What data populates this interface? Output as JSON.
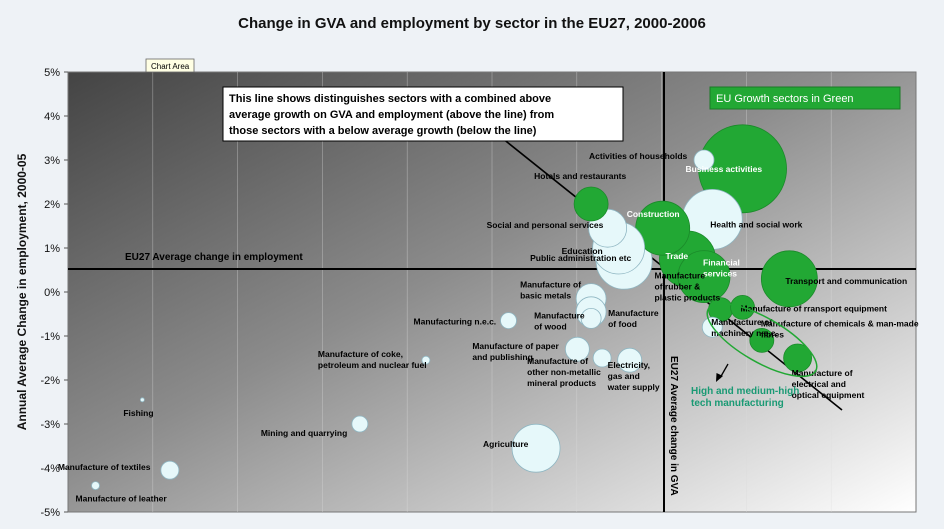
{
  "chart_data": {
    "type": "scatter",
    "title": "Change in GVA and employment by sector in the EU27, 2000-2006",
    "xlabel": "",
    "ylabel": "Annual Average Change in employment, 2000-05",
    "ylim": [
      -5,
      5
    ],
    "yticks": [
      "5%",
      "4%",
      "3%",
      "2%",
      "1%",
      "0%",
      "-1%",
      "-2%",
      "-3%",
      "-4%",
      "-5%"
    ],
    "grid": "vertical",
    "chart_area_tooltip": "Chart Area",
    "legend_box": "EU Growth sectors in Green",
    "annotation_box": [
      "This line shows distinguishes sectors with a combined above",
      "average growth on GVA and employment (above the line) from",
      "those sectors with a below average growth (below the line)"
    ],
    "employment_avg_label": "EU27 Average change in employment",
    "gva_avg_label": "EU27 Average change in GVA",
    "hightech_label": [
      "High and medium-high",
      "tech manufacturing"
    ],
    "colors": {
      "growth": "#22a834",
      "other": "#e6f8fa",
      "other_stroke": "#8fb6c2",
      "hightech_text": "#1a9a74"
    },
    "series": [
      {
        "name": "Activities of households",
        "gva": 5.05,
        "emp": 3.0,
        "size": 10,
        "growth": false
      },
      {
        "name": "Business activities",
        "gva": 5.75,
        "emp": 2.8,
        "size": 44,
        "growth": true
      },
      {
        "name": "Hotels and restaurants",
        "gva": 3.0,
        "emp": 2.0,
        "size": 17,
        "growth": true
      },
      {
        "name": "Construction",
        "gva": 4.3,
        "emp": 1.45,
        "size": 27,
        "growth": true
      },
      {
        "name": "Health and social work",
        "gva": 5.2,
        "emp": 1.65,
        "size": 30,
        "growth": false
      },
      {
        "name": "Social and personal services",
        "gva": 3.3,
        "emp": 1.45,
        "size": 19,
        "growth": false
      },
      {
        "name": "Education",
        "gva": 3.5,
        "emp": 1.0,
        "size": 26,
        "growth": false
      },
      {
        "name": "Public administration etc",
        "gva": 3.6,
        "emp": 0.7,
        "size": 28,
        "growth": false
      },
      {
        "name": "Trade",
        "gva": 4.75,
        "emp": 0.75,
        "size": 28,
        "growth": true
      },
      {
        "name": "Financial services",
        "gva": 5.05,
        "emp": 0.35,
        "size": 26,
        "growth": true
      },
      {
        "name": "Transport and communication",
        "gva": 6.6,
        "emp": 0.3,
        "size": 28,
        "growth": true
      },
      {
        "name": "Manufacture of basic metals",
        "gva": 3.0,
        "emp": -0.15,
        "size": 15,
        "growth": false
      },
      {
        "name": "Manufacture of food",
        "gva": 3.0,
        "emp": -0.45,
        "size": 15,
        "growth": false
      },
      {
        "name": "Manufacture of wood",
        "gva": 3.0,
        "emp": -0.6,
        "size": 10,
        "growth": false
      },
      {
        "name": "Manufacture of rubber & plastic products",
        "gva": 5.35,
        "emp": -0.4,
        "size": 12,
        "growth": true
      },
      {
        "name": "Manufacture of rransport equipment",
        "gva": 5.75,
        "emp": -0.35,
        "size": 12,
        "growth": true
      },
      {
        "name": "Manufacturing n.e.c.",
        "gva": 1.5,
        "emp": -0.65,
        "size": 8,
        "growth": false
      },
      {
        "name": "Manufacture of machinery n.e.c.",
        "gva": 5.2,
        "emp": -0.8,
        "size": 10,
        "growth": false
      },
      {
        "name": "Manufacture of chemicals & man-made fibres",
        "gva": 6.1,
        "emp": -1.1,
        "size": 12,
        "growth": true
      },
      {
        "name": "Manufacture of paper and publishing",
        "gva": 2.75,
        "emp": -1.3,
        "size": 12,
        "growth": false
      },
      {
        "name": "Manufacture of other non-metallic mineral products",
        "gva": 3.2,
        "emp": -1.5,
        "size": 9,
        "growth": false
      },
      {
        "name": "Electricity, gas and water supply",
        "gva": 3.7,
        "emp": -1.55,
        "size": 12,
        "growth": false
      },
      {
        "name": "Manufacture of electrical and optical equipment",
        "gva": 6.75,
        "emp": -1.5,
        "size": 14,
        "growth": true
      },
      {
        "name": "Manufacture of coke, petroleum and nuclear fuel",
        "gva": 0.0,
        "emp": -1.55,
        "size": 4,
        "growth": false
      },
      {
        "name": "Fishing",
        "gva": -5.15,
        "emp": -2.45,
        "size": 2,
        "growth": false
      },
      {
        "name": "Mining and quarrying",
        "gva": -1.2,
        "emp": -3.0,
        "size": 8,
        "growth": false
      },
      {
        "name": "Agriculture",
        "gva": 2.0,
        "emp": -3.55,
        "size": 24,
        "growth": false
      },
      {
        "name": "Manufacture of textiles",
        "gva": -4.65,
        "emp": -4.05,
        "size": 9,
        "growth": false
      },
      {
        "name": "Manufacture of leather",
        "gva": -6.0,
        "emp": -4.4,
        "size": 4,
        "growth": false
      }
    ]
  }
}
